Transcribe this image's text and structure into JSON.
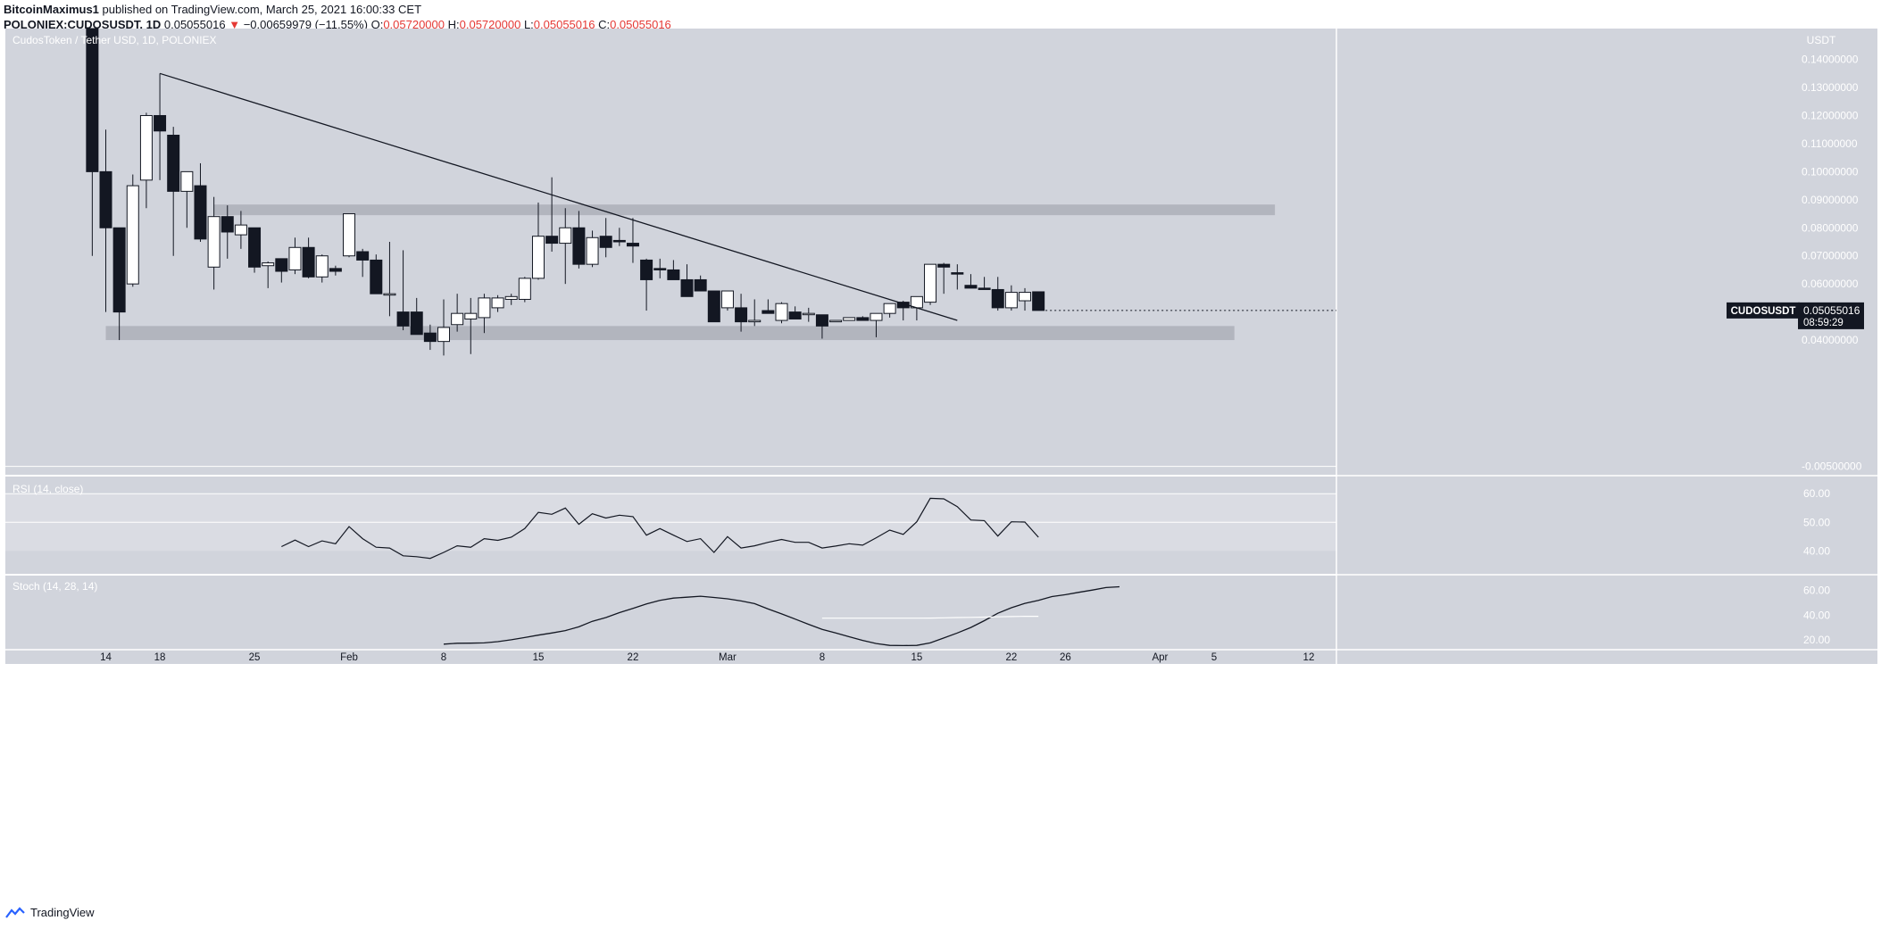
{
  "header": {
    "user": "BitcoinMaximus1",
    "published": "published on TradingView.com, March 25, 2021 16:00:33 CET",
    "symbol": "POLONIEX:CUDOSUSDT, 1D",
    "price": "0.05055016",
    "change": "−0.00659979 (−11.55%)",
    "open_label": "O:",
    "open": "0.05720000",
    "high_label": "H:",
    "high": "0.05720000",
    "low_label": "L:",
    "low": "0.05055016",
    "close_label": "C:",
    "close": "0.05055016"
  },
  "footer": {
    "brand": "TradingView"
  },
  "colors": {
    "panel_bg": "#d1d4dc",
    "zone": "#b2b5be",
    "up_body": "#ffffff",
    "down_body": "#131722",
    "text": "#ffffff",
    "badge_bg": "#131722"
  },
  "chart_data": [
    {
      "type": "candlestick",
      "title": "CudosToken / Tether USD, 1D, POLONIEX",
      "axis_title": "USDT",
      "ylim": [
        -0.008,
        0.151
      ],
      "yticks": [
        0.14,
        0.13,
        0.12,
        0.11,
        0.1,
        0.09,
        0.08,
        0.07,
        0.06,
        0.05,
        0.04,
        -0.005
      ],
      "ytick_labels": [
        "0.14000000",
        "0.13000000",
        "0.12000000",
        "0.11000000",
        "0.10000000",
        "0.09000000",
        "0.08000000",
        "0.07000000",
        "0.06000000",
        "0.05000000",
        "0.04000000",
        "-0.00500000"
      ],
      "x_ticks": [
        {
          "day": 14,
          "label": "14"
        },
        {
          "day": 18,
          "label": "18"
        },
        {
          "day": 25,
          "label": "25"
        },
        {
          "day": 32,
          "label": "Feb"
        },
        {
          "day": 39,
          "label": "8"
        },
        {
          "day": 46,
          "label": "15"
        },
        {
          "day": 53,
          "label": "22"
        },
        {
          "day": 60,
          "label": "Mar"
        },
        {
          "day": 67,
          "label": "8"
        },
        {
          "day": 74,
          "label": "15"
        },
        {
          "day": 81,
          "label": "22"
        },
        {
          "day": 85,
          "label": "26"
        },
        {
          "day": 92,
          "label": "Apr"
        },
        {
          "day": 96,
          "label": "5"
        },
        {
          "day": 103,
          "label": "12"
        }
      ],
      "candles": [
        {
          "date": "Jan 13",
          "o": 0.158,
          "h": 0.165,
          "l": 0.07,
          "c": 0.1
        },
        {
          "date": "Jan 14",
          "o": 0.1,
          "h": 0.115,
          "l": 0.05,
          "c": 0.08
        },
        {
          "date": "Jan 15",
          "o": 0.08,
          "h": 0.08,
          "l": 0.04,
          "c": 0.05
        },
        {
          "date": "Jan 16",
          "o": 0.06,
          "h": 0.099,
          "l": 0.059,
          "c": 0.095
        },
        {
          "date": "Jan 17",
          "o": 0.097,
          "h": 0.121,
          "l": 0.087,
          "c": 0.12
        },
        {
          "date": "Jan 18",
          "o": 0.12,
          "h": 0.135,
          "l": 0.097,
          "c": 0.1145
        },
        {
          "date": "Jan 19",
          "o": 0.113,
          "h": 0.116,
          "l": 0.07,
          "c": 0.093
        },
        {
          "date": "Jan 20",
          "o": 0.093,
          "h": 0.1,
          "l": 0.08,
          "c": 0.1
        },
        {
          "date": "Jan 21",
          "o": 0.095,
          "h": 0.103,
          "l": 0.075,
          "c": 0.076
        },
        {
          "date": "Jan 22",
          "o": 0.066,
          "h": 0.091,
          "l": 0.058,
          "c": 0.084
        },
        {
          "date": "Jan 23",
          "o": 0.084,
          "h": 0.088,
          "l": 0.069,
          "c": 0.0785
        },
        {
          "date": "Jan 24",
          "o": 0.0775,
          "h": 0.086,
          "l": 0.0725,
          "c": 0.081
        },
        {
          "date": "Jan 25",
          "o": 0.08,
          "h": 0.08,
          "l": 0.064,
          "c": 0.066
        },
        {
          "date": "Jan 26",
          "o": 0.0665,
          "h": 0.068,
          "l": 0.0585,
          "c": 0.0675
        },
        {
          "date": "Jan 27",
          "o": 0.069,
          "h": 0.069,
          "l": 0.0605,
          "c": 0.0645
        },
        {
          "date": "Jan 28",
          "o": 0.065,
          "h": 0.0765,
          "l": 0.0635,
          "c": 0.073
        },
        {
          "date": "Jan 29",
          "o": 0.073,
          "h": 0.0765,
          "l": 0.062,
          "c": 0.0625
        },
        {
          "date": "Jan 30",
          "o": 0.0625,
          "h": 0.0705,
          "l": 0.0605,
          "c": 0.07
        },
        {
          "date": "Jan 31",
          "o": 0.0655,
          "h": 0.0665,
          "l": 0.063,
          "c": 0.0645
        },
        {
          "date": "Feb 1",
          "o": 0.07,
          "h": 0.085,
          "l": 0.0695,
          "c": 0.085
        },
        {
          "date": "Feb 2",
          "o": 0.0715,
          "h": 0.0725,
          "l": 0.0625,
          "c": 0.0685
        },
        {
          "date": "Feb 3",
          "o": 0.0685,
          "h": 0.0705,
          "l": 0.0565,
          "c": 0.0565
        },
        {
          "date": "Feb 4",
          "o": 0.0565,
          "h": 0.075,
          "l": 0.0485,
          "c": 0.0565
        },
        {
          "date": "Feb 5",
          "o": 0.05,
          "h": 0.072,
          "l": 0.0435,
          "c": 0.045
        },
        {
          "date": "Feb 6",
          "o": 0.05,
          "h": 0.055,
          "l": 0.042,
          "c": 0.042
        },
        {
          "date": "Feb 7",
          "o": 0.0425,
          "h": 0.0455,
          "l": 0.0365,
          "c": 0.0395
        },
        {
          "date": "Feb 8",
          "o": 0.0395,
          "h": 0.0545,
          "l": 0.0345,
          "c": 0.0445
        },
        {
          "date": "Feb 9",
          "o": 0.0455,
          "h": 0.0565,
          "l": 0.043,
          "c": 0.0495
        },
        {
          "date": "Feb 10",
          "o": 0.0475,
          "h": 0.055,
          "l": 0.035,
          "c": 0.0495
        },
        {
          "date": "Feb 11",
          "o": 0.048,
          "h": 0.0565,
          "l": 0.0425,
          "c": 0.055
        },
        {
          "date": "Feb 12",
          "o": 0.0515,
          "h": 0.056,
          "l": 0.05,
          "c": 0.055
        },
        {
          "date": "Feb 13",
          "o": 0.0545,
          "h": 0.0565,
          "l": 0.0525,
          "c": 0.0555
        },
        {
          "date": "Feb 14",
          "o": 0.0545,
          "h": 0.0625,
          "l": 0.0535,
          "c": 0.062
        },
        {
          "date": "Feb 15",
          "o": 0.062,
          "h": 0.089,
          "l": 0.0615,
          "c": 0.077
        },
        {
          "date": "Feb 16",
          "o": 0.077,
          "h": 0.098,
          "l": 0.0715,
          "c": 0.0745
        },
        {
          "date": "Feb 17",
          "o": 0.0745,
          "h": 0.087,
          "l": 0.06,
          "c": 0.08
        },
        {
          "date": "Feb 18",
          "o": 0.08,
          "h": 0.086,
          "l": 0.0655,
          "c": 0.067
        },
        {
          "date": "Feb 19",
          "o": 0.067,
          "h": 0.079,
          "l": 0.066,
          "c": 0.0765
        },
        {
          "date": "Feb 20",
          "o": 0.077,
          "h": 0.0835,
          "l": 0.0695,
          "c": 0.073
        },
        {
          "date": "Feb 21",
          "o": 0.0755,
          "h": 0.08,
          "l": 0.0735,
          "c": 0.075
        },
        {
          "date": "Feb 22",
          "o": 0.0745,
          "h": 0.0835,
          "l": 0.0675,
          "c": 0.0735
        },
        {
          "date": "Feb 23",
          "o": 0.0685,
          "h": 0.069,
          "l": 0.0505,
          "c": 0.0615
        },
        {
          "date": "Feb 24",
          "o": 0.0655,
          "h": 0.069,
          "l": 0.062,
          "c": 0.065
        },
        {
          "date": "Feb 25",
          "o": 0.065,
          "h": 0.0685,
          "l": 0.0615,
          "c": 0.0615
        },
        {
          "date": "Feb 26",
          "o": 0.0615,
          "h": 0.067,
          "l": 0.0555,
          "c": 0.0555
        },
        {
          "date": "Feb 27",
          "o": 0.0615,
          "h": 0.063,
          "l": 0.0575,
          "c": 0.0575
        },
        {
          "date": "Feb 28",
          "o": 0.0575,
          "h": 0.0575,
          "l": 0.0465,
          "c": 0.0465
        },
        {
          "date": "Mar 1",
          "o": 0.0515,
          "h": 0.0575,
          "l": 0.0505,
          "c": 0.0575
        },
        {
          "date": "Mar 2",
          "o": 0.0515,
          "h": 0.0565,
          "l": 0.043,
          "c": 0.0465
        },
        {
          "date": "Mar 3",
          "o": 0.0465,
          "h": 0.0545,
          "l": 0.045,
          "c": 0.047
        },
        {
          "date": "Mar 4",
          "o": 0.0505,
          "h": 0.0545,
          "l": 0.0495,
          "c": 0.0495
        },
        {
          "date": "Mar 5",
          "o": 0.047,
          "h": 0.0535,
          "l": 0.046,
          "c": 0.053
        },
        {
          "date": "Mar 6",
          "o": 0.05,
          "h": 0.052,
          "l": 0.0475,
          "c": 0.0475
        },
        {
          "date": "Mar 7",
          "o": 0.0495,
          "h": 0.0515,
          "l": 0.0465,
          "c": 0.0495
        },
        {
          "date": "Mar 8",
          "o": 0.049,
          "h": 0.049,
          "l": 0.0405,
          "c": 0.045
        },
        {
          "date": "Mar 9",
          "o": 0.0465,
          "h": 0.047,
          "l": 0.0465,
          "c": 0.047
        },
        {
          "date": "Mar 10",
          "o": 0.047,
          "h": 0.048,
          "l": 0.047,
          "c": 0.048
        },
        {
          "date": "Mar 11",
          "o": 0.048,
          "h": 0.0485,
          "l": 0.047,
          "c": 0.047
        },
        {
          "date": "Mar 12",
          "o": 0.047,
          "h": 0.0495,
          "l": 0.041,
          "c": 0.0495
        },
        {
          "date": "Mar 13",
          "o": 0.0495,
          "h": 0.053,
          "l": 0.048,
          "c": 0.053
        },
        {
          "date": "Mar 14",
          "o": 0.0535,
          "h": 0.054,
          "l": 0.047,
          "c": 0.0515
        },
        {
          "date": "Mar 15",
          "o": 0.0515,
          "h": 0.0555,
          "l": 0.047,
          "c": 0.0555
        },
        {
          "date": "Mar 16",
          "o": 0.0535,
          "h": 0.0655,
          "l": 0.0525,
          "c": 0.067
        },
        {
          "date": "Mar 17",
          "o": 0.067,
          "h": 0.0675,
          "l": 0.0565,
          "c": 0.066
        },
        {
          "date": "Mar 18",
          "o": 0.064,
          "h": 0.067,
          "l": 0.058,
          "c": 0.0635
        },
        {
          "date": "Mar 19",
          "o": 0.0595,
          "h": 0.0635,
          "l": 0.0585,
          "c": 0.0585
        },
        {
          "date": "Mar 20",
          "o": 0.0585,
          "h": 0.0625,
          "l": 0.058,
          "c": 0.058
        },
        {
          "date": "Mar 21",
          "o": 0.058,
          "h": 0.0625,
          "l": 0.0505,
          "c": 0.0515
        },
        {
          "date": "Mar 22",
          "o": 0.0515,
          "h": 0.0595,
          "l": 0.0505,
          "c": 0.057
        },
        {
          "date": "Mar 23",
          "o": 0.054,
          "h": 0.0585,
          "l": 0.0505,
          "c": 0.057
        },
        {
          "date": "Mar 24",
          "o": 0.0572,
          "h": 0.0572,
          "l": 0.05055016,
          "c": 0.05055016
        }
      ],
      "zones": [
        {
          "label": "resistance",
          "y_low": 0.0845,
          "y_high": 0.0883,
          "day_start": 22,
          "day_end": 100.5
        },
        {
          "label": "support",
          "y_low": 0.04,
          "y_high": 0.045,
          "day_start": 14,
          "day_end": 97.5
        }
      ],
      "trendline": {
        "from": {
          "day": 18,
          "y": 0.135
        },
        "to": {
          "day": 77,
          "y": 0.047
        }
      },
      "last_price_badge": {
        "symbol": "CUDOSUSDT",
        "value": "0.05055016",
        "countdown": "08:59:29"
      }
    },
    {
      "type": "line",
      "title": "RSI (14, close)",
      "ylim": [
        32,
        66
      ],
      "yticks": [
        60,
        50,
        40
      ],
      "ytick_labels": [
        "60.00",
        "50.00",
        "40.00"
      ],
      "band": [
        40,
        60
      ],
      "x_start_day": 27,
      "values": [
        41.5,
        43.8,
        41.5,
        43.5,
        42.5,
        48.5,
        44.3,
        41.3,
        41.0,
        38.3,
        38.0,
        37.4,
        39.5,
        41.8,
        41.3,
        44.3,
        43.7,
        44.8,
        47.8,
        53.5,
        52.8,
        55.0,
        49.3,
        53.0,
        51.5,
        52.5,
        52.0,
        45.5,
        47.8,
        45.5,
        43.3,
        44.3,
        39.5,
        45.0,
        41.0,
        41.8,
        43.0,
        44.0,
        43.0,
        43.0,
        41.0,
        41.7,
        42.5,
        42.0,
        44.6,
        47.3,
        45.8,
        50.2,
        58.4,
        58.2,
        55.5,
        50.8,
        50.6,
        45.2,
        50.2,
        50.1,
        44.8
      ]
    },
    {
      "type": "line",
      "title": "Stoch (14, 28, 14)",
      "ylim": [
        12,
        72
      ],
      "yticks": [
        60,
        40,
        20
      ],
      "ytick_labels": [
        "60.00",
        "40.00",
        "20.00"
      ],
      "series": [
        {
          "start_day": 39,
          "values": [
            16.5,
            17.2,
            17.3,
            17.5,
            18.5,
            20.0,
            21.8,
            23.8,
            25.5,
            27.5,
            30.5,
            35.0,
            38.0,
            42.0,
            45.5,
            49.0,
            52.0,
            53.8,
            54.5,
            55.3,
            54.3,
            53.2,
            51.5,
            49.3,
            45.0,
            41.0,
            36.8,
            32.5,
            28.5,
            25.5,
            22.5,
            19.5,
            17.0,
            15.5,
            15.3,
            15.5,
            17.5,
            21.5,
            25.5,
            30.0,
            35.5,
            41.5,
            46.0,
            49.5,
            52.0,
            55.0,
            56.5,
            58.5,
            60.3,
            62.3,
            63.0
          ]
        },
        {
          "start_day": 67,
          "values": [
            37.5,
            37.5,
            37.5,
            37.5,
            37.5,
            37.5,
            37.5,
            37.5,
            37.6,
            37.8,
            38.0,
            38.2,
            38.4,
            38.6,
            38.8,
            39.0,
            39.0
          ]
        }
      ]
    }
  ]
}
